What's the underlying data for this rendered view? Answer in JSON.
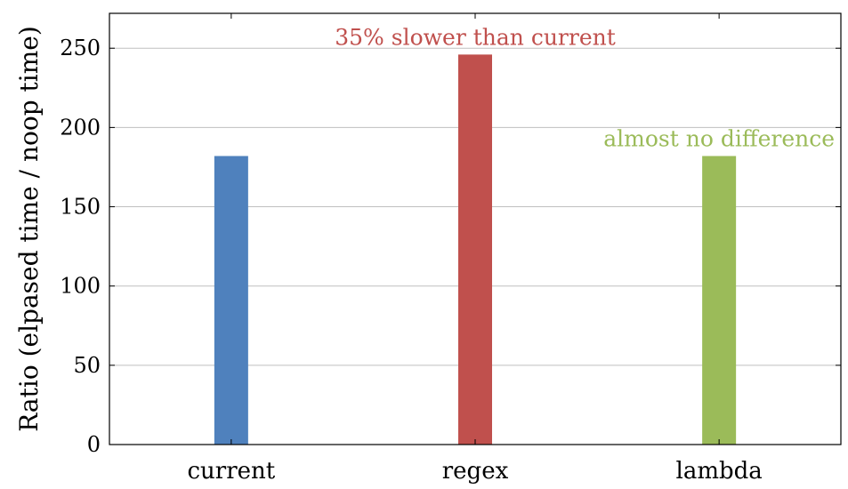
{
  "chart_data": {
    "type": "bar",
    "title": "",
    "xlabel": "",
    "ylabel": "Ratio (elpased time / noop time)",
    "categories": [
      "current",
      "regex",
      "lambda"
    ],
    "values": [
      182,
      246,
      182
    ],
    "colors": [
      "#4f81bd",
      "#c0504d",
      "#9bbb59"
    ],
    "ylim": [
      0,
      272
    ],
    "yticks": [
      0,
      50,
      100,
      150,
      200,
      250
    ],
    "grid": "horizontal",
    "legend": "none",
    "annotations": [
      {
        "category": "regex",
        "text": "35% slower than current",
        "color": "#c0504d"
      },
      {
        "category": "lambda",
        "text": "almost no difference",
        "color": "#9bbb59"
      }
    ]
  }
}
